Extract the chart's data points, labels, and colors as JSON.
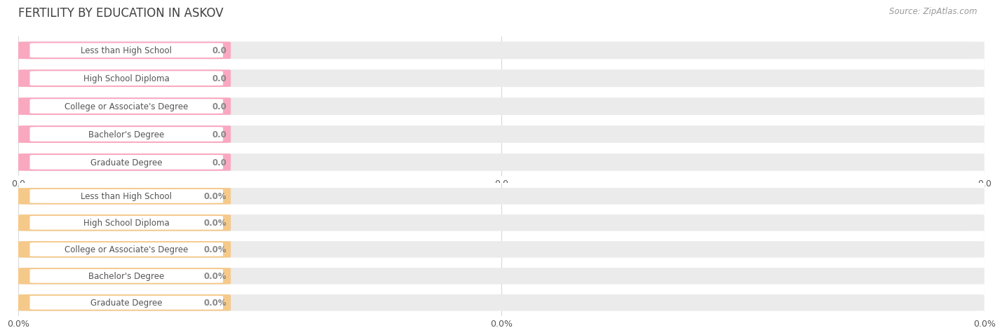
{
  "title": "FERTILITY BY EDUCATION IN ASKOV",
  "source": "Source: ZipAtlas.com",
  "background_color": "#ffffff",
  "section1": {
    "categories": [
      "Less than High School",
      "High School Diploma",
      "College or Associate's Degree",
      "Bachelor's Degree",
      "Graduate Degree"
    ],
    "values": [
      0.0,
      0.0,
      0.0,
      0.0,
      0.0
    ],
    "bar_color": "#F9A8C0",
    "bar_bg_color": "#ebebeb",
    "value_label": "0.0",
    "tick_labels": [
      "0.0",
      "0.0",
      "0.0"
    ]
  },
  "section2": {
    "categories": [
      "Less than High School",
      "High School Diploma",
      "College or Associate's Degree",
      "Bachelor's Degree",
      "Graduate Degree"
    ],
    "values": [
      0.0,
      0.0,
      0.0,
      0.0,
      0.0
    ],
    "bar_color": "#F5C98A",
    "bar_bg_color": "#ebebeb",
    "value_label": "0.0%",
    "tick_labels": [
      "0.0%",
      "0.0%",
      "0.0%"
    ]
  },
  "text_color": "#555555",
  "title_color": "#404040",
  "bar_height": 0.62,
  "grid_color": "#d8d8d8",
  "value_text_color": "#888888"
}
